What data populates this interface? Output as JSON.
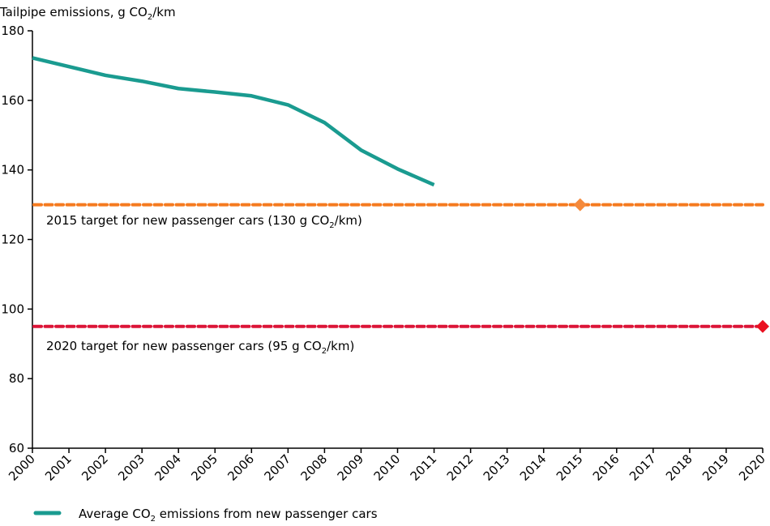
{
  "chart_data": {
    "type": "line",
    "title": "",
    "ylabel_parts": {
      "prefix": "Tailpipe emissions, g CO",
      "sub": "2",
      "suffix": "/km"
    },
    "xlabel": "",
    "ylim": [
      60,
      180
    ],
    "yticks": [
      60,
      80,
      100,
      120,
      140,
      160,
      180
    ],
    "xlim": [
      2000,
      2020
    ],
    "x_categories": [
      "2000",
      "2001",
      "2002",
      "2003",
      "2004",
      "2005",
      "2006",
      "2007",
      "2008",
      "2009",
      "2010",
      "2011",
      "2012",
      "2013",
      "2014",
      "2015",
      "2016",
      "2017",
      "2018",
      "2019",
      "2020"
    ],
    "grid": false,
    "series": [
      {
        "name": "Average CO2 emissions from new passenger cars",
        "legend_parts": {
          "prefix": "Average CO",
          "sub": "2",
          "suffix": " emissions from new passenger cars"
        },
        "color": "#1a9b90",
        "x": [
          2000,
          2001,
          2002,
          2003,
          2004,
          2005,
          2006,
          2007,
          2008,
          2009,
          2010,
          2011
        ],
        "values": [
          172.2,
          169.7,
          167.2,
          165.5,
          163.4,
          162.4,
          161.3,
          158.7,
          153.6,
          145.7,
          140.3,
          135.7
        ]
      }
    ],
    "reference_lines": [
      {
        "name": "2015 target",
        "value": 130,
        "color": "#f57a1f",
        "marker_color": "#f58a3c",
        "marker_year": 2015,
        "label_parts": {
          "prefix": "2015 target for new passenger cars (130 g CO",
          "sub": "2",
          "suffix": "/km)"
        }
      },
      {
        "name": "2020 target",
        "value": 95,
        "color": "#dc1437",
        "marker_color": "#ea1020",
        "marker_year": 2020,
        "label_parts": {
          "prefix": "2020 target for new passenger cars (95 g CO",
          "sub": "2",
          "suffix": "/km)"
        }
      }
    ],
    "legend_position": "bottom-left"
  }
}
